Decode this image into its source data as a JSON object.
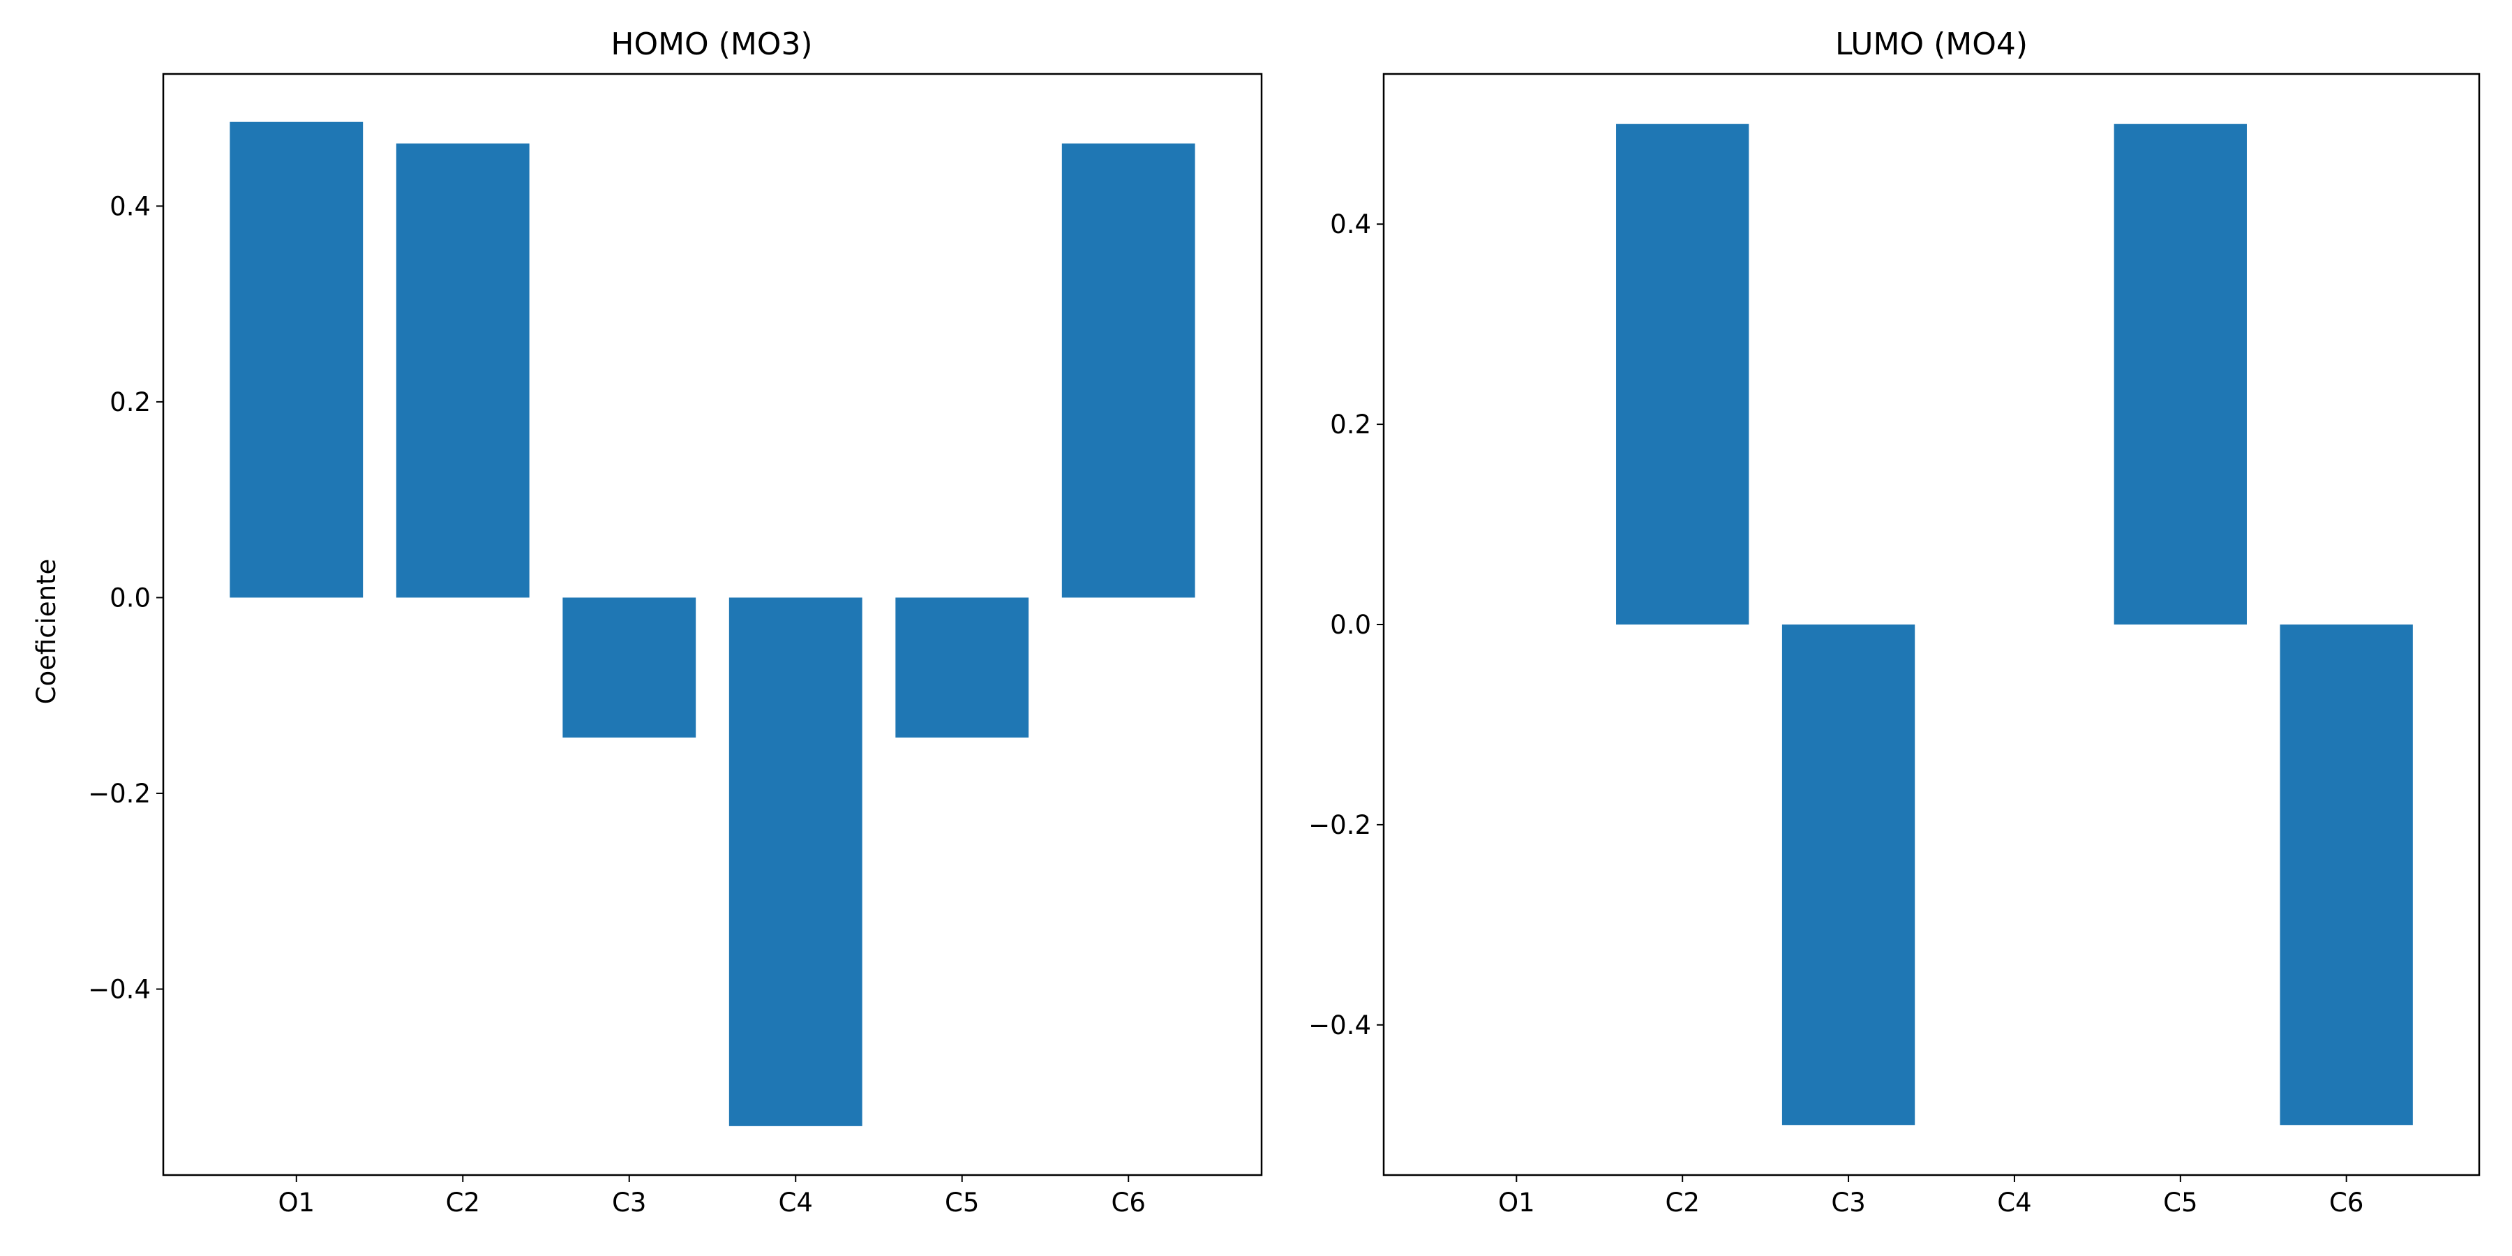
{
  "colors": {
    "bar": "#1f77b4",
    "axis": "#000000",
    "background": "#ffffff"
  },
  "chart_data": [
    {
      "type": "bar",
      "title": "HOMO (MO3)",
      "xlabel": "",
      "ylabel": "Coeficiente",
      "categories": [
        "O1",
        "C2",
        "C3",
        "C4",
        "C5",
        "C6"
      ],
      "values": [
        0.486,
        0.464,
        -0.143,
        -0.54,
        -0.143,
        0.464
      ],
      "ylim": [
        -0.59,
        0.535
      ],
      "yticks": [
        0.4,
        0.2,
        0.0,
        -0.2,
        -0.4
      ],
      "ytick_labels": [
        "0.4",
        "0.2",
        "0.0",
        "−0.2",
        "−0.4"
      ],
      "grid": false,
      "legend": "none"
    },
    {
      "type": "bar",
      "title": "LUMO (MO4)",
      "xlabel": "",
      "ylabel": "",
      "categories": [
        "O1",
        "C2",
        "C3",
        "C4",
        "C5",
        "C6"
      ],
      "values": [
        0.0,
        0.5,
        -0.5,
        0.0,
        0.5,
        -0.5
      ],
      "ylim": [
        -0.55,
        0.55
      ],
      "yticks": [
        0.4,
        0.2,
        0.0,
        -0.2,
        -0.4
      ],
      "ytick_labels": [
        "0.4",
        "0.2",
        "0.0",
        "−0.2",
        "−0.4"
      ],
      "grid": false,
      "legend": "none"
    }
  ]
}
